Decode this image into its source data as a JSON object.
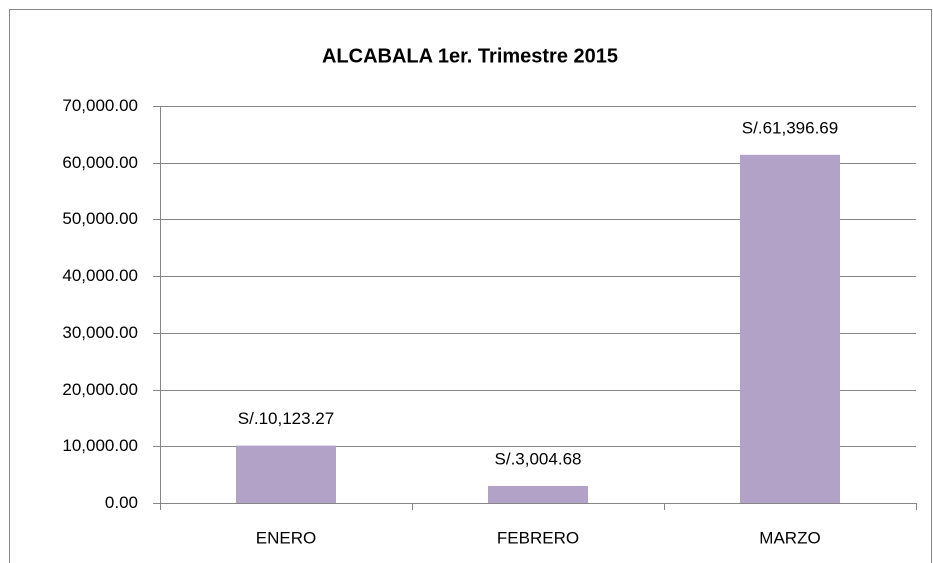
{
  "chart_data": {
    "type": "bar",
    "title": "ALCABALA 1er. Trimestre 2015",
    "categories": [
      "ENERO",
      "FEBRERO",
      "MARZO"
    ],
    "values": [
      10123.27,
      3004.68,
      61396.69
    ],
    "value_labels": [
      "S/.10,123.27",
      "S/.3,004.68",
      "S/.61,396.69"
    ],
    "color": "#b3a2c7",
    "ylim": [
      0,
      70000
    ],
    "yticks": [
      {
        "value": 0,
        "label": "0.00"
      },
      {
        "value": 10000,
        "label": "10,000.00"
      },
      {
        "value": 20000,
        "label": "20,000.00"
      },
      {
        "value": 30000,
        "label": "30,000.00"
      },
      {
        "value": 40000,
        "label": "40,000.00"
      },
      {
        "value": 50000,
        "label": "50,000.00"
      },
      {
        "value": 60000,
        "label": "60,000.00"
      },
      {
        "value": 70000,
        "label": "70,000.00"
      }
    ],
    "grid": true
  }
}
